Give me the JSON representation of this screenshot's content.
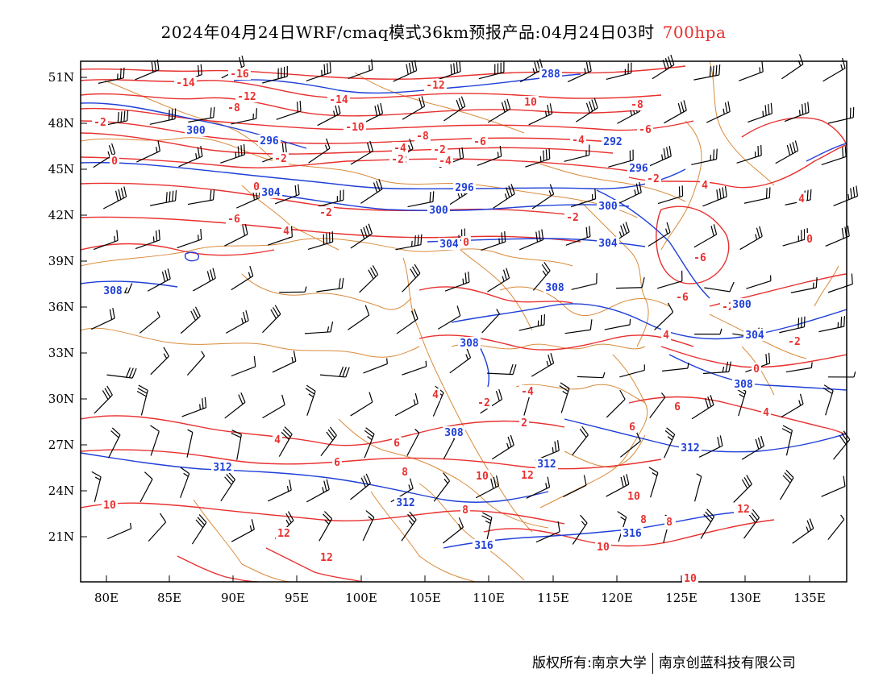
{
  "header": {
    "title": "2024年04月24日WRF/cmaq模式36km预报产品:04月24日03时",
    "level": "700hpa"
  },
  "colors": {
    "temperature": "#e8302f",
    "height": "#1f3fd8",
    "border": "#d98a3a",
    "wind": "#000000"
  },
  "map": {
    "lat_labels": [
      "51N",
      "48N",
      "45N",
      "42N",
      "39N",
      "36N",
      "33N",
      "30N",
      "27N",
      "24N",
      "21N"
    ],
    "lon_labels": [
      "80E",
      "85E",
      "90E",
      "95E",
      "100E",
      "105E",
      "110E",
      "115E",
      "120E",
      "125E",
      "130E",
      "135E"
    ],
    "temperature_labels": [
      "-16",
      "-14",
      "-12",
      "-12",
      "-8",
      "-14",
      "10",
      "-8",
      "-2",
      "-10",
      "-6",
      "-4",
      "-2",
      "-4",
      "-2",
      "-8",
      "-6",
      "-4",
      "-2",
      "0",
      "-2",
      "0",
      "-2",
      "-6",
      "4",
      "-2",
      "0",
      "-2",
      "4",
      "-6",
      "4",
      "-6",
      "0",
      "-2",
      "4",
      "-2",
      "0",
      "4",
      "-2",
      "-4",
      "4",
      "2",
      "6",
      "4",
      "6",
      "6",
      "8",
      "10",
      "12",
      "10",
      "8",
      "12",
      "10",
      "12",
      "12",
      "8",
      "8",
      "10",
      "6",
      "8",
      "10"
    ],
    "height_labels": [
      "288",
      "300",
      "296",
      "292",
      "296",
      "304",
      "296",
      "300",
      "300",
      "304",
      "304",
      "308",
      "308",
      "300",
      "304",
      "308",
      "308",
      "308",
      "312",
      "312",
      "312",
      "312",
      "316",
      "316"
    ]
  },
  "footer": {
    "copyright": "版权所有:南京大学",
    "company": "南京创蓝科技有限公司"
  }
}
